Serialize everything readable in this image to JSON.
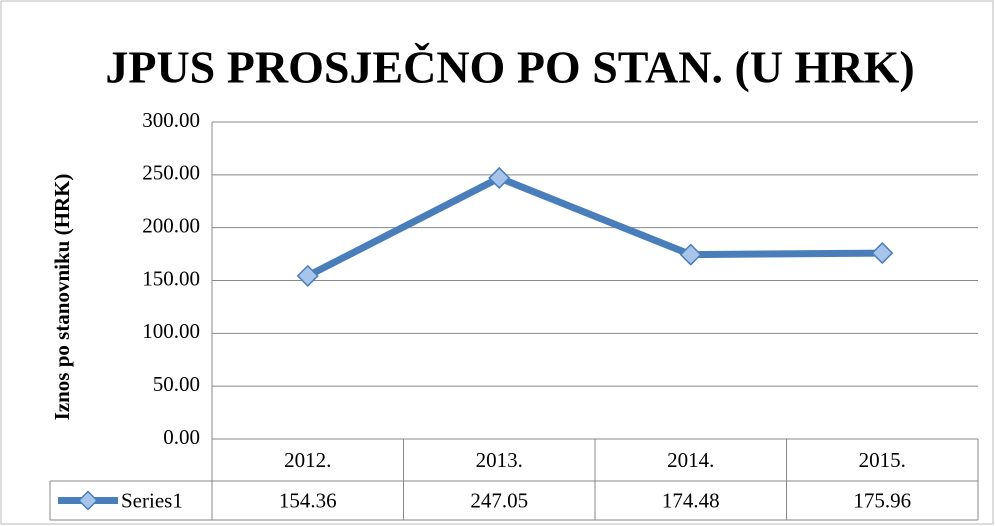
{
  "chart_data": {
    "type": "line",
    "title": "JPUS PROSJEČNO PO STAN.  (U HRK)",
    "y_label": "Iznos po stanovniku  (HRK)",
    "categories": [
      "2012.",
      "2013.",
      "2014.",
      "2015."
    ],
    "series": [
      {
        "name": "Series1",
        "color": "#4a7ebb",
        "values": [
          154.36,
          247.05,
          174.48,
          175.96
        ]
      }
    ],
    "ylim": [
      0,
      300
    ],
    "yticks": [
      {
        "value": 0,
        "label": "0.00"
      },
      {
        "value": 50,
        "label": "50.00"
      },
      {
        "value": 100,
        "label": "100.00"
      },
      {
        "value": 150,
        "label": "150.00"
      },
      {
        "value": 200,
        "label": "200.00"
      },
      {
        "value": 250,
        "label": "250.00"
      },
      {
        "value": 300,
        "label": "300.00"
      }
    ],
    "grid": true,
    "data_table": true
  }
}
